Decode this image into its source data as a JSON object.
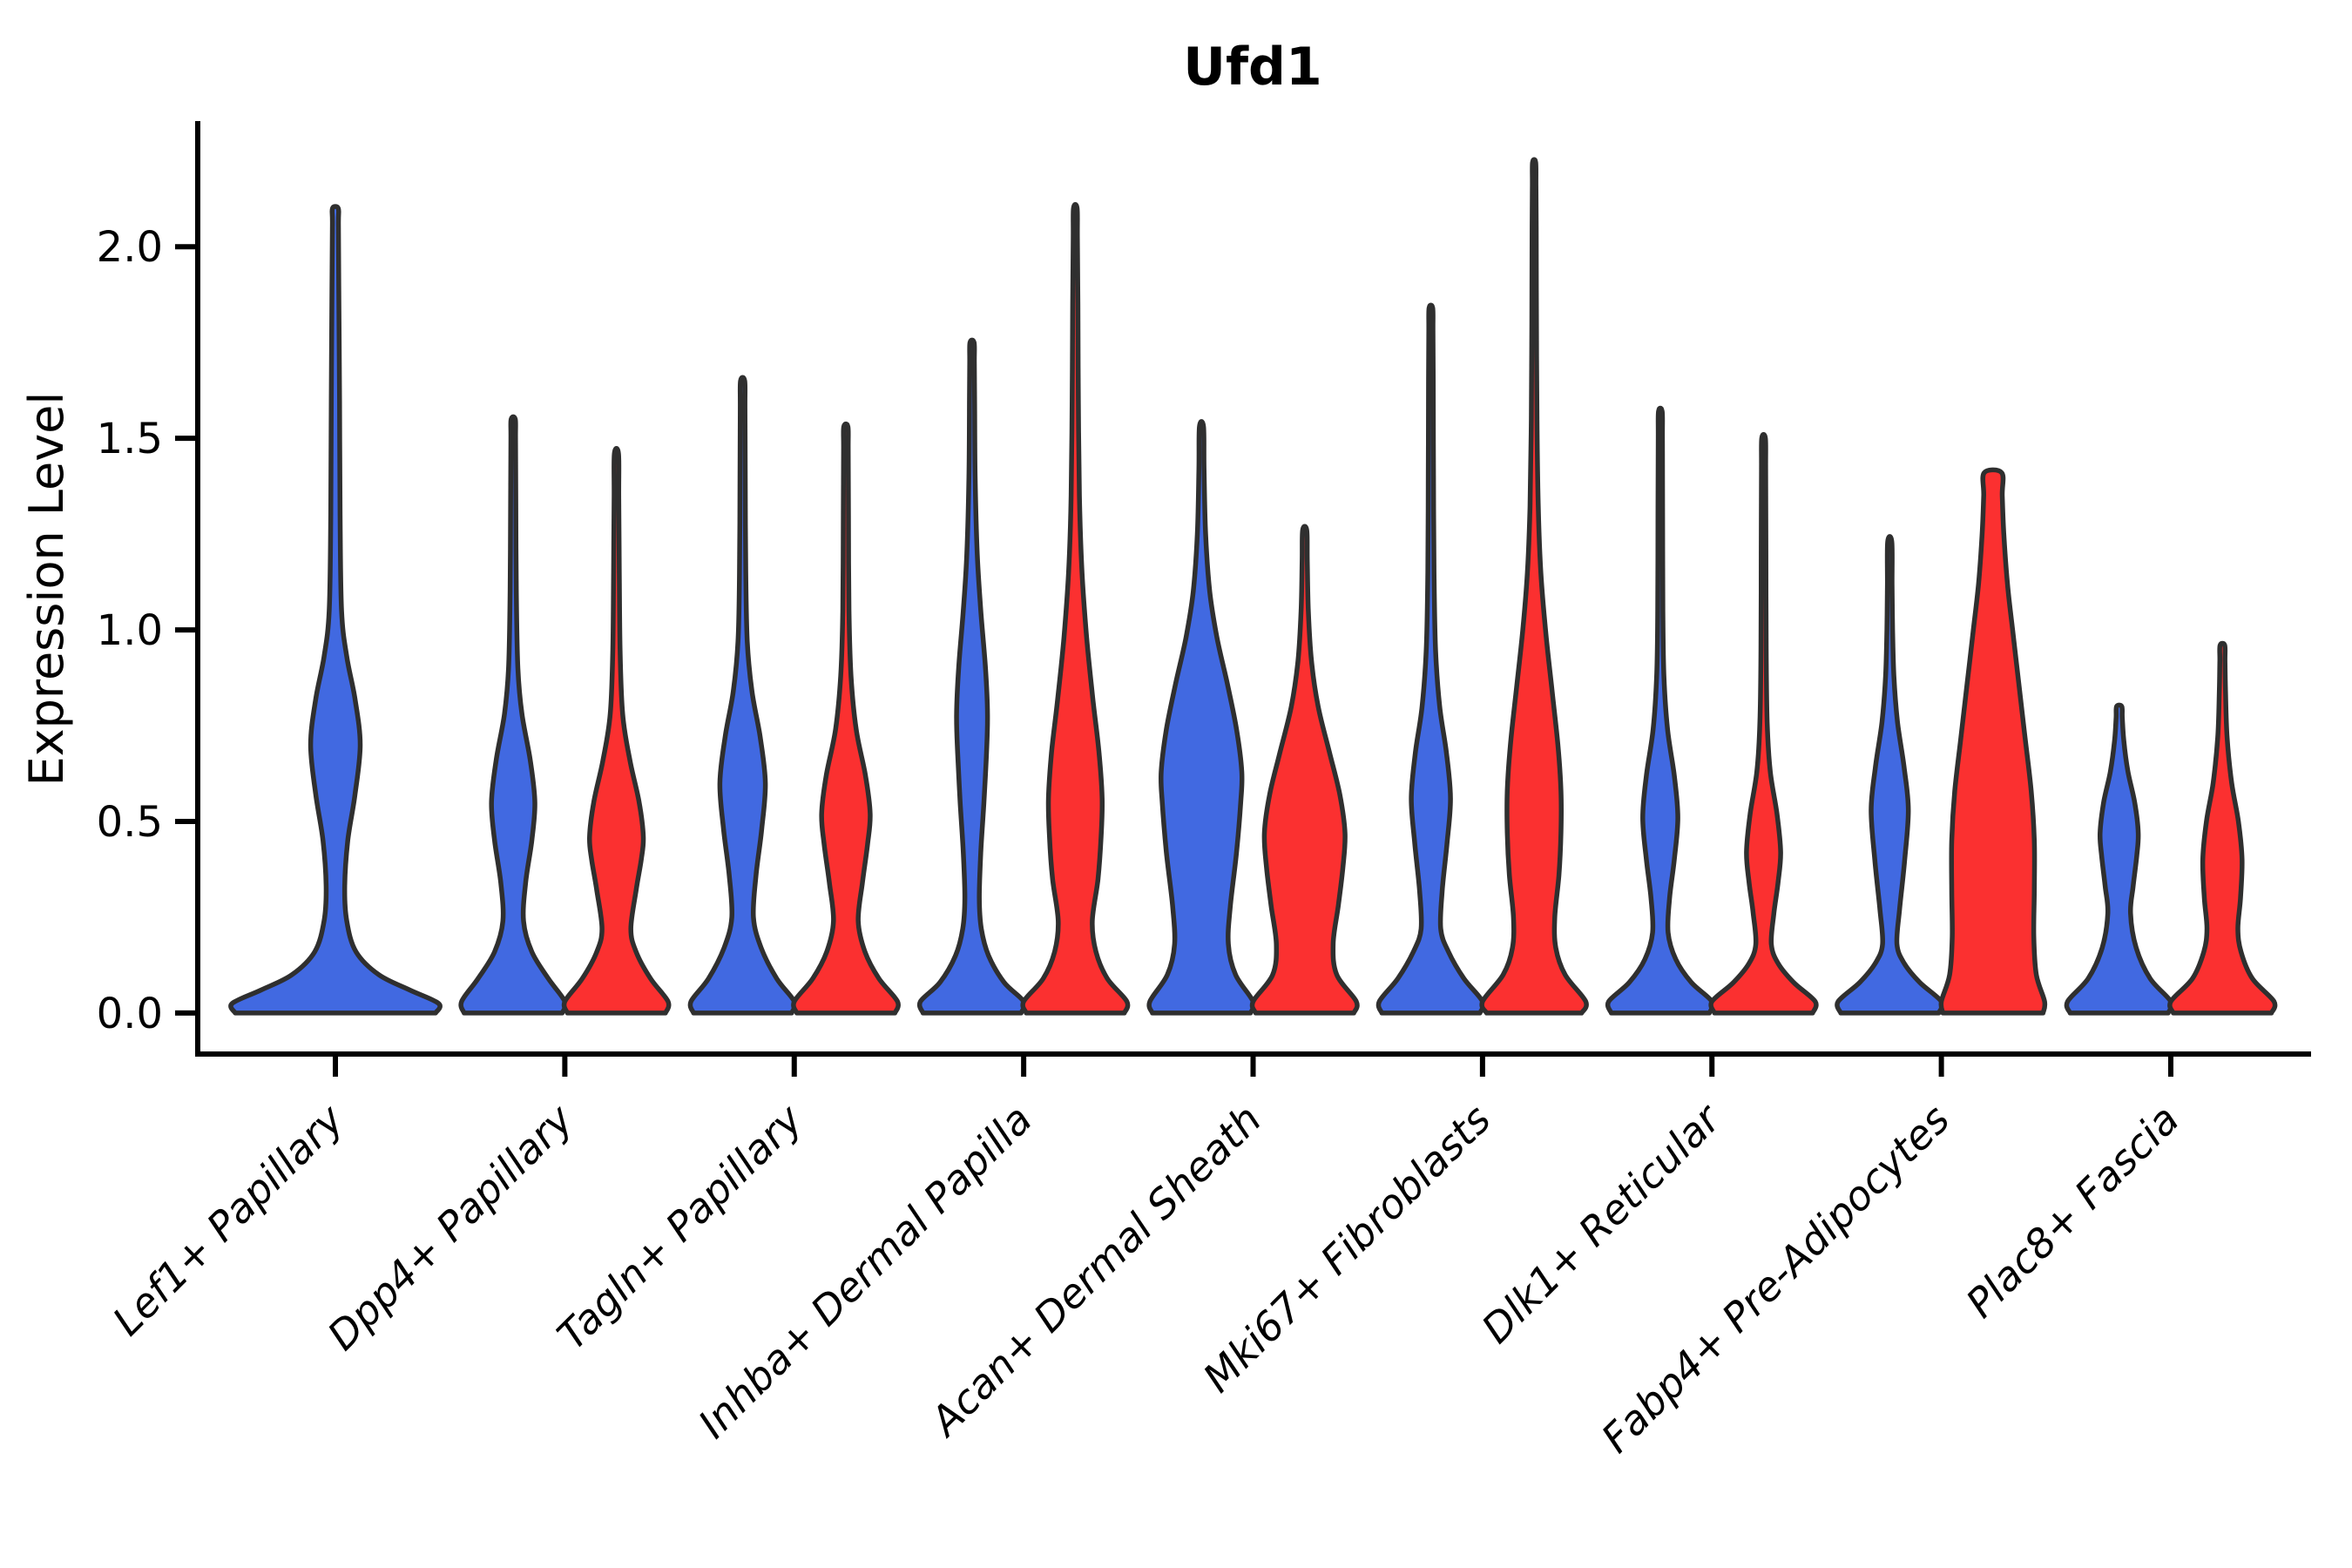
{
  "chart_data": {
    "type": "violin",
    "title": "Ufd1",
    "xlabel": "",
    "ylabel": "Expression Level",
    "legend": "none",
    "grid": false,
    "y_ticks": [
      0.0,
      0.5,
      1.0,
      1.5,
      2.0
    ],
    "y_tick_labels": [
      "0.0",
      "0.5",
      "1.0",
      "1.5",
      "2.0"
    ],
    "ylim": [
      -0.107,
      2.321
    ],
    "xlim": [
      0.4,
      9.6
    ],
    "categories": [
      "Lef1+ Papillary",
      "Dpp4+ Papillary",
      "Tagln+ Papillary",
      "Inhba+ Dermal Papilla",
      "Acan+ Dermal Sheath",
      "Mki67+ Fibroblasts",
      "Dlk1+ Reticular",
      "Fabp4+ Pre-Adipocytes",
      "Plac8+ Fascia"
    ],
    "colors": {
      "blue": "#4169E1",
      "red": "#FB3030",
      "outline": "#2F2F2F",
      "axis": "#000000"
    },
    "violins": [
      {
        "category_index": 1,
        "hue": "blue",
        "offset": 0.0,
        "half_width": 0.45,
        "max_expression": 2.1,
        "flat_top": false,
        "profile": [
          [
            0,
            0.97
          ],
          [
            0.025,
            1.0
          ],
          [
            0.06,
            0.72
          ],
          [
            0.1,
            0.42
          ],
          [
            0.16,
            0.2
          ],
          [
            0.24,
            0.11
          ],
          [
            0.33,
            0.09
          ],
          [
            0.45,
            0.12
          ],
          [
            0.57,
            0.19
          ],
          [
            0.7,
            0.24
          ],
          [
            0.82,
            0.19
          ],
          [
            0.93,
            0.11
          ],
          [
            1.05,
            0.06
          ],
          [
            1.3,
            0.045
          ],
          [
            1.6,
            0.04
          ],
          [
            1.9,
            0.033
          ],
          [
            2.06,
            0.029
          ],
          [
            2.1,
            0.028
          ]
        ]
      },
      {
        "category_index": 2,
        "hue": "blue",
        "offset": -0.225,
        "half_width": 0.225,
        "max_expression": 1.55,
        "flat_top": false,
        "profile": [
          [
            0,
            0.95
          ],
          [
            0.03,
            1.0
          ],
          [
            0.09,
            0.68
          ],
          [
            0.16,
            0.36
          ],
          [
            0.24,
            0.2
          ],
          [
            0.34,
            0.24
          ],
          [
            0.45,
            0.36
          ],
          [
            0.55,
            0.42
          ],
          [
            0.66,
            0.33
          ],
          [
            0.78,
            0.17
          ],
          [
            0.9,
            0.09
          ],
          [
            1.1,
            0.06
          ],
          [
            1.35,
            0.05
          ],
          [
            1.5,
            0.045
          ],
          [
            1.55,
            0.04
          ]
        ]
      },
      {
        "category_index": 2,
        "hue": "red",
        "offset": 0.225,
        "half_width": 0.225,
        "max_expression": 1.46,
        "flat_top": false,
        "profile": [
          [
            0,
            0.95
          ],
          [
            0.03,
            1.0
          ],
          [
            0.09,
            0.66
          ],
          [
            0.16,
            0.38
          ],
          [
            0.22,
            0.28
          ],
          [
            0.32,
            0.38
          ],
          [
            0.4,
            0.48
          ],
          [
            0.46,
            0.52
          ],
          [
            0.55,
            0.44
          ],
          [
            0.66,
            0.26
          ],
          [
            0.78,
            0.12
          ],
          [
            0.95,
            0.07
          ],
          [
            1.15,
            0.055
          ],
          [
            1.35,
            0.045
          ],
          [
            1.46,
            0.04
          ]
        ]
      },
      {
        "category_index": 3,
        "hue": "blue",
        "offset": -0.225,
        "half_width": 0.225,
        "max_expression": 1.65,
        "flat_top": false,
        "profile": [
          [
            0,
            0.95
          ],
          [
            0.03,
            1.0
          ],
          [
            0.09,
            0.66
          ],
          [
            0.17,
            0.36
          ],
          [
            0.25,
            0.21
          ],
          [
            0.36,
            0.26
          ],
          [
            0.48,
            0.37
          ],
          [
            0.6,
            0.44
          ],
          [
            0.72,
            0.34
          ],
          [
            0.84,
            0.18
          ],
          [
            0.97,
            0.09
          ],
          [
            1.15,
            0.06
          ],
          [
            1.4,
            0.05
          ],
          [
            1.58,
            0.045
          ],
          [
            1.65,
            0.04
          ]
        ]
      },
      {
        "category_index": 3,
        "hue": "red",
        "offset": 0.225,
        "half_width": 0.225,
        "max_expression": 1.53,
        "flat_top": false,
        "profile": [
          [
            0,
            0.95
          ],
          [
            0.03,
            1.0
          ],
          [
            0.09,
            0.64
          ],
          [
            0.16,
            0.37
          ],
          [
            0.24,
            0.24
          ],
          [
            0.34,
            0.32
          ],
          [
            0.44,
            0.42
          ],
          [
            0.52,
            0.47
          ],
          [
            0.62,
            0.38
          ],
          [
            0.74,
            0.2
          ],
          [
            0.88,
            0.1
          ],
          [
            1.05,
            0.06
          ],
          [
            1.3,
            0.05
          ],
          [
            1.47,
            0.045
          ],
          [
            1.53,
            0.04
          ]
        ]
      },
      {
        "category_index": 4,
        "hue": "blue",
        "offset": -0.225,
        "half_width": 0.225,
        "max_expression": 1.75,
        "flat_top": false,
        "profile": [
          [
            0,
            0.95
          ],
          [
            0.03,
            1.0
          ],
          [
            0.08,
            0.62
          ],
          [
            0.15,
            0.32
          ],
          [
            0.22,
            0.18
          ],
          [
            0.3,
            0.14
          ],
          [
            0.42,
            0.17
          ],
          [
            0.55,
            0.23
          ],
          [
            0.68,
            0.28
          ],
          [
            0.78,
            0.3
          ],
          [
            0.9,
            0.26
          ],
          [
            1.05,
            0.17
          ],
          [
            1.2,
            0.1
          ],
          [
            1.4,
            0.06
          ],
          [
            1.6,
            0.05
          ],
          [
            1.7,
            0.045
          ],
          [
            1.75,
            0.04
          ]
        ]
      },
      {
        "category_index": 4,
        "hue": "red",
        "offset": 0.225,
        "half_width": 0.225,
        "max_expression": 2.1,
        "flat_top": false,
        "profile": [
          [
            0,
            0.95
          ],
          [
            0.03,
            1.0
          ],
          [
            0.09,
            0.62
          ],
          [
            0.16,
            0.4
          ],
          [
            0.24,
            0.33
          ],
          [
            0.35,
            0.44
          ],
          [
            0.46,
            0.5
          ],
          [
            0.56,
            0.52
          ],
          [
            0.68,
            0.46
          ],
          [
            0.82,
            0.34
          ],
          [
            0.98,
            0.22
          ],
          [
            1.15,
            0.13
          ],
          [
            1.35,
            0.08
          ],
          [
            1.6,
            0.06
          ],
          [
            1.85,
            0.05
          ],
          [
            2.02,
            0.04
          ],
          [
            2.1,
            0.035
          ]
        ]
      },
      {
        "category_index": 5,
        "hue": "blue",
        "offset": -0.225,
        "half_width": 0.225,
        "max_expression": 1.53,
        "flat_top": false,
        "profile": [
          [
            0,
            0.95
          ],
          [
            0.03,
            1.0
          ],
          [
            0.1,
            0.66
          ],
          [
            0.18,
            0.52
          ],
          [
            0.28,
            0.56
          ],
          [
            0.42,
            0.68
          ],
          [
            0.55,
            0.76
          ],
          [
            0.63,
            0.78
          ],
          [
            0.74,
            0.68
          ],
          [
            0.86,
            0.5
          ],
          [
            0.98,
            0.3
          ],
          [
            1.1,
            0.16
          ],
          [
            1.25,
            0.08
          ],
          [
            1.42,
            0.05
          ],
          [
            1.53,
            0.04
          ]
        ]
      },
      {
        "category_index": 5,
        "hue": "red",
        "offset": 0.225,
        "half_width": 0.225,
        "max_expression": 1.26,
        "flat_top": false,
        "profile": [
          [
            0,
            0.95
          ],
          [
            0.03,
            1.0
          ],
          [
            0.1,
            0.62
          ],
          [
            0.18,
            0.55
          ],
          [
            0.28,
            0.65
          ],
          [
            0.38,
            0.74
          ],
          [
            0.47,
            0.78
          ],
          [
            0.57,
            0.68
          ],
          [
            0.68,
            0.48
          ],
          [
            0.8,
            0.26
          ],
          [
            0.92,
            0.13
          ],
          [
            1.05,
            0.07
          ],
          [
            1.18,
            0.05
          ],
          [
            1.26,
            0.04
          ]
        ]
      },
      {
        "category_index": 6,
        "hue": "blue",
        "offset": -0.225,
        "half_width": 0.225,
        "max_expression": 1.84,
        "flat_top": false,
        "profile": [
          [
            0,
            0.95
          ],
          [
            0.03,
            1.0
          ],
          [
            0.09,
            0.64
          ],
          [
            0.16,
            0.34
          ],
          [
            0.22,
            0.19
          ],
          [
            0.32,
            0.22
          ],
          [
            0.44,
            0.31
          ],
          [
            0.56,
            0.38
          ],
          [
            0.68,
            0.3
          ],
          [
            0.8,
            0.17
          ],
          [
            0.95,
            0.09
          ],
          [
            1.15,
            0.06
          ],
          [
            1.4,
            0.05
          ],
          [
            1.65,
            0.045
          ],
          [
            1.78,
            0.04
          ],
          [
            1.84,
            0.035
          ]
        ]
      },
      {
        "category_index": 6,
        "hue": "red",
        "offset": 0.225,
        "half_width": 0.225,
        "max_expression": 2.22,
        "flat_top": false,
        "profile": [
          [
            0,
            0.92
          ],
          [
            0.03,
            1.0
          ],
          [
            0.1,
            0.6
          ],
          [
            0.17,
            0.42
          ],
          [
            0.25,
            0.4
          ],
          [
            0.36,
            0.48
          ],
          [
            0.47,
            0.52
          ],
          [
            0.58,
            0.52
          ],
          [
            0.7,
            0.46
          ],
          [
            0.85,
            0.34
          ],
          [
            1.0,
            0.22
          ],
          [
            1.15,
            0.13
          ],
          [
            1.32,
            0.08
          ],
          [
            1.55,
            0.055
          ],
          [
            1.8,
            0.045
          ],
          [
            2.05,
            0.04
          ],
          [
            2.16,
            0.035
          ],
          [
            2.22,
            0.03
          ]
        ]
      },
      {
        "category_index": 7,
        "hue": "blue",
        "offset": -0.225,
        "half_width": 0.225,
        "max_expression": 1.57,
        "flat_top": false,
        "profile": [
          [
            0,
            0.95
          ],
          [
            0.03,
            1.0
          ],
          [
            0.08,
            0.6
          ],
          [
            0.14,
            0.3
          ],
          [
            0.21,
            0.15
          ],
          [
            0.3,
            0.18
          ],
          [
            0.4,
            0.27
          ],
          [
            0.51,
            0.34
          ],
          [
            0.62,
            0.27
          ],
          [
            0.74,
            0.14
          ],
          [
            0.88,
            0.07
          ],
          [
            1.05,
            0.05
          ],
          [
            1.3,
            0.045
          ],
          [
            1.5,
            0.04
          ],
          [
            1.57,
            0.035
          ]
        ]
      },
      {
        "category_index": 7,
        "hue": "red",
        "offset": 0.225,
        "half_width": 0.225,
        "max_expression": 1.5,
        "flat_top": false,
        "profile": [
          [
            0,
            0.95
          ],
          [
            0.03,
            1.0
          ],
          [
            0.08,
            0.58
          ],
          [
            0.13,
            0.28
          ],
          [
            0.18,
            0.15
          ],
          [
            0.26,
            0.2
          ],
          [
            0.34,
            0.28
          ],
          [
            0.42,
            0.33
          ],
          [
            0.52,
            0.26
          ],
          [
            0.63,
            0.13
          ],
          [
            0.76,
            0.07
          ],
          [
            0.95,
            0.05
          ],
          [
            1.2,
            0.045
          ],
          [
            1.42,
            0.04
          ],
          [
            1.5,
            0.035
          ]
        ]
      },
      {
        "category_index": 8,
        "hue": "blue",
        "offset": -0.225,
        "half_width": 0.225,
        "max_expression": 1.23,
        "flat_top": false,
        "profile": [
          [
            0,
            0.95
          ],
          [
            0.03,
            1.0
          ],
          [
            0.08,
            0.58
          ],
          [
            0.13,
            0.28
          ],
          [
            0.18,
            0.14
          ],
          [
            0.27,
            0.19
          ],
          [
            0.4,
            0.29
          ],
          [
            0.53,
            0.36
          ],
          [
            0.64,
            0.28
          ],
          [
            0.76,
            0.15
          ],
          [
            0.88,
            0.08
          ],
          [
            1.0,
            0.055
          ],
          [
            1.12,
            0.045
          ],
          [
            1.23,
            0.04
          ]
        ]
      },
      {
        "category_index": 8,
        "hue": "red",
        "offset": 0.225,
        "half_width": 0.225,
        "max_expression": 1.41,
        "flat_top": true,
        "profile": [
          [
            0,
            0.97
          ],
          [
            0.03,
            1.0
          ],
          [
            0.1,
            0.84
          ],
          [
            0.2,
            0.79
          ],
          [
            0.32,
            0.8
          ],
          [
            0.45,
            0.8
          ],
          [
            0.58,
            0.74
          ],
          [
            0.72,
            0.62
          ],
          [
            0.86,
            0.5
          ],
          [
            1.0,
            0.38
          ],
          [
            1.12,
            0.28
          ],
          [
            1.25,
            0.21
          ],
          [
            1.35,
            0.18
          ],
          [
            1.41,
            0.17
          ]
        ]
      },
      {
        "category_index": 9,
        "hue": "blue",
        "offset": -0.225,
        "half_width": 0.225,
        "max_expression": 0.8,
        "flat_top": false,
        "profile": [
          [
            0,
            0.95
          ],
          [
            0.03,
            1.0
          ],
          [
            0.09,
            0.6
          ],
          [
            0.17,
            0.33
          ],
          [
            0.26,
            0.22
          ],
          [
            0.33,
            0.27
          ],
          [
            0.41,
            0.34
          ],
          [
            0.47,
            0.37
          ],
          [
            0.55,
            0.3
          ],
          [
            0.63,
            0.17
          ],
          [
            0.71,
            0.09
          ],
          [
            0.77,
            0.06
          ],
          [
            0.8,
            0.05
          ]
        ]
      },
      {
        "category_index": 9,
        "hue": "red",
        "offset": 0.225,
        "half_width": 0.225,
        "max_expression": 0.96,
        "flat_top": false,
        "profile": [
          [
            0,
            0.95
          ],
          [
            0.03,
            1.0
          ],
          [
            0.09,
            0.58
          ],
          [
            0.16,
            0.36
          ],
          [
            0.22,
            0.3
          ],
          [
            0.3,
            0.35
          ],
          [
            0.4,
            0.38
          ],
          [
            0.5,
            0.31
          ],
          [
            0.6,
            0.18
          ],
          [
            0.72,
            0.09
          ],
          [
            0.84,
            0.06
          ],
          [
            0.92,
            0.05
          ],
          [
            0.96,
            0.045
          ]
        ]
      }
    ]
  }
}
